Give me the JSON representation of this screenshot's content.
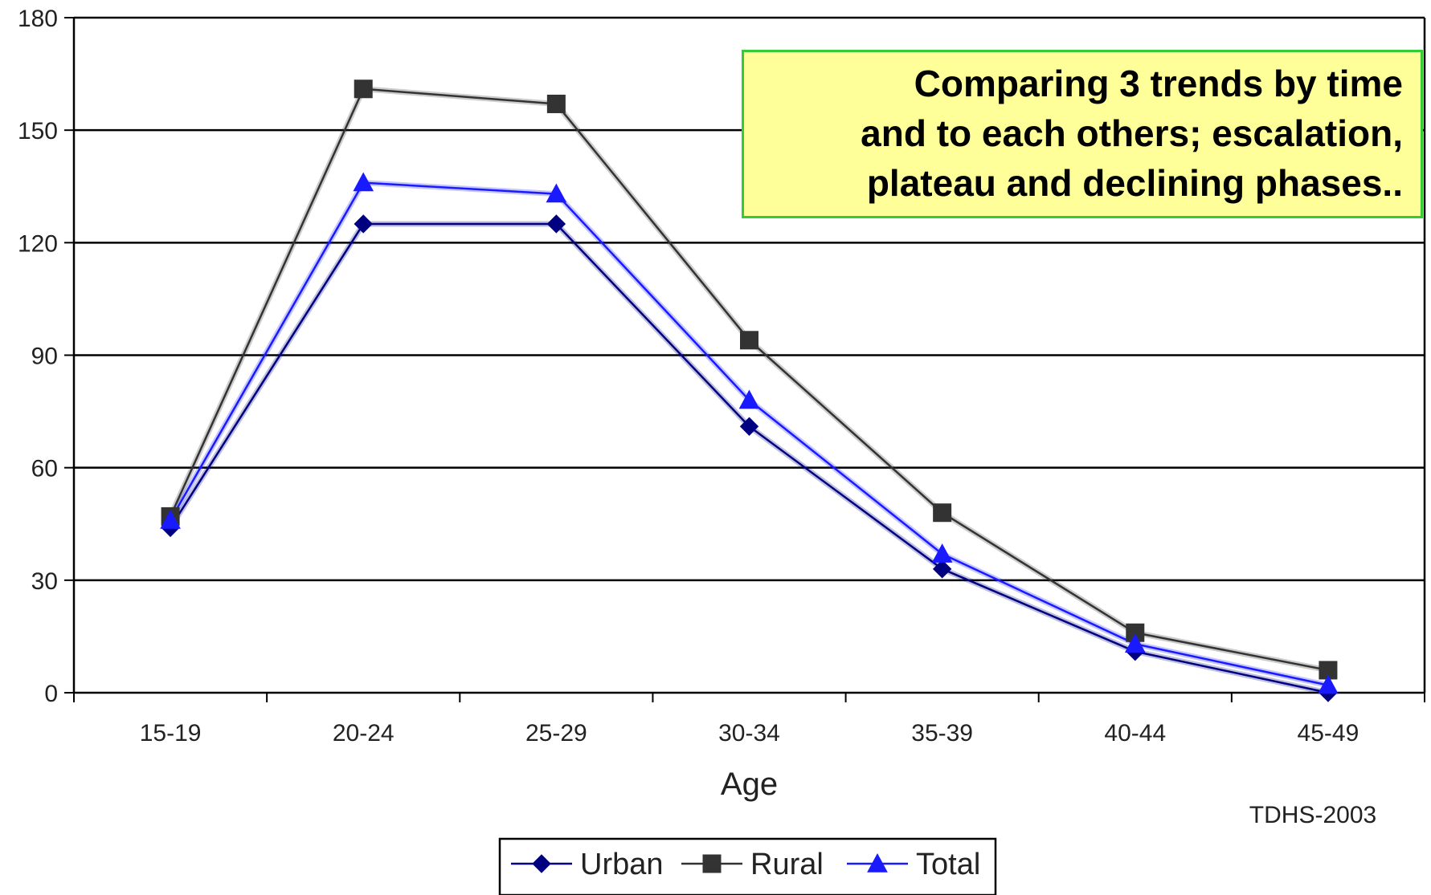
{
  "chart_data": {
    "type": "line",
    "categories": [
      "15-19",
      "20-24",
      "25-29",
      "30-34",
      "35-39",
      "40-44",
      "45-49"
    ],
    "series": [
      {
        "name": "Urban",
        "values": [
          44,
          125,
          125,
          71,
          33,
          11,
          0
        ],
        "color": "#000080",
        "marker": "diamond"
      },
      {
        "name": "Rural",
        "values": [
          47,
          161,
          157,
          94,
          48,
          16,
          6
        ],
        "color": "#333333",
        "marker": "square"
      },
      {
        "name": "Total",
        "values": [
          46,
          136,
          133,
          78,
          37,
          13,
          2
        ],
        "color": "#1a1aff",
        "marker": "triangle"
      }
    ],
    "xlabel": "Age",
    "ylabel": "",
    "ylim": [
      0,
      180
    ],
    "yticks": [
      0,
      30,
      60,
      90,
      120,
      150,
      180
    ],
    "grid": "horizontal",
    "legend": "bottom-center",
    "source": "TDHS-2003",
    "annotation": [
      "Comparing 3 trends by time",
      "and to each others; escalation,",
      "plateau and declining phases.."
    ],
    "annotation_colors": {
      "background": "#ffff99",
      "border": "#33cc33"
    }
  }
}
